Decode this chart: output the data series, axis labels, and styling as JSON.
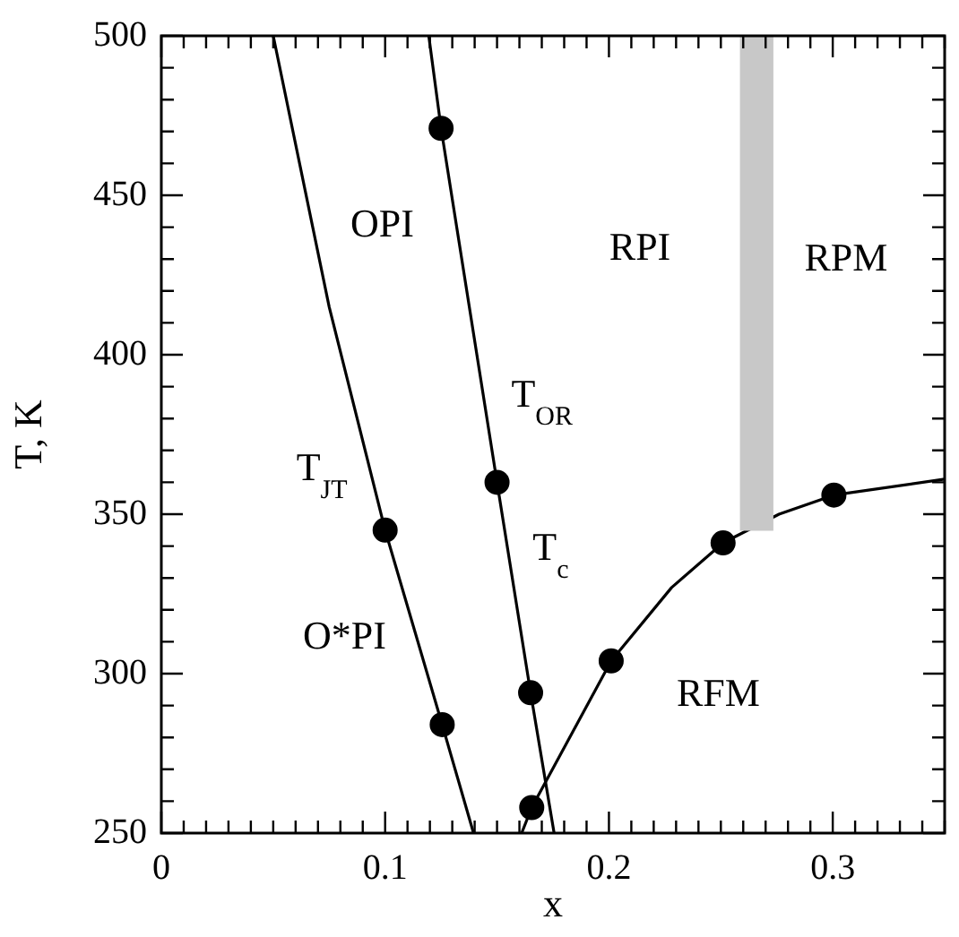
{
  "chart_data": {
    "type": "line",
    "xlabel": "x",
    "ylabel": "T, K",
    "xlim": [
      0,
      0.35
    ],
    "ylim": [
      250,
      500
    ],
    "xticks": [
      0,
      {
        "value": 0.01,
        "label": null
      },
      {
        "value": 0.02,
        "label": null
      },
      {
        "value": 0.03,
        "label": null
      },
      {
        "value": 0.04,
        "label": null
      },
      {
        "value": 0.05,
        "label": null
      },
      {
        "value": 0.06,
        "label": null
      },
      {
        "value": 0.07,
        "label": null
      },
      {
        "value": 0.08,
        "label": null
      },
      {
        "value": 0.09,
        "label": null
      },
      0.1,
      {
        "value": 0.11,
        "label": null
      },
      {
        "value": 0.12,
        "label": null
      },
      {
        "value": 0.13,
        "label": null
      },
      {
        "value": 0.14,
        "label": null
      },
      {
        "value": 0.15,
        "label": null
      },
      {
        "value": 0.16,
        "label": null
      },
      {
        "value": 0.17,
        "label": null
      },
      {
        "value": 0.18,
        "label": null
      },
      {
        "value": 0.19,
        "label": null
      },
      0.2,
      {
        "value": 0.21,
        "label": null
      },
      {
        "value": 0.22,
        "label": null
      },
      {
        "value": 0.23,
        "label": null
      },
      {
        "value": 0.24,
        "label": null
      },
      {
        "value": 0.25,
        "label": null
      },
      {
        "value": 0.26,
        "label": null
      },
      {
        "value": 0.27,
        "label": null
      },
      {
        "value": 0.28,
        "label": null
      },
      {
        "value": 0.29,
        "label": null
      },
      0.3,
      {
        "value": 0.31,
        "label": null
      },
      {
        "value": 0.32,
        "label": null
      },
      {
        "value": 0.33,
        "label": null
      },
      {
        "value": 0.34,
        "label": null
      },
      {
        "value": 0.35,
        "label": null
      }
    ],
    "yticks": [
      250,
      {
        "value": 260,
        "label": null
      },
      {
        "value": 270,
        "label": null
      },
      {
        "value": 280,
        "label": null
      },
      {
        "value": 290,
        "label": null
      },
      300,
      {
        "value": 310,
        "label": null
      },
      {
        "value": 320,
        "label": null
      },
      {
        "value": 330,
        "label": null
      },
      {
        "value": 340,
        "label": null
      },
      350,
      {
        "value": 360,
        "label": null
      },
      {
        "value": 370,
        "label": null
      },
      {
        "value": 380,
        "label": null
      },
      {
        "value": 390,
        "label": null
      },
      400,
      {
        "value": 410,
        "label": null
      },
      {
        "value": 420,
        "label": null
      },
      {
        "value": 430,
        "label": null
      },
      {
        "value": 440,
        "label": null
      },
      450,
      {
        "value": 460,
        "label": null
      },
      {
        "value": 470,
        "label": null
      },
      {
        "value": 480,
        "label": null
      },
      {
        "value": 490,
        "label": null
      },
      500
    ],
    "grid": false,
    "legend": false,
    "series": [
      {
        "type": "bar",
        "color": "#c8c8c8",
        "x": [
          0.266
        ],
        "values": [
          155
        ],
        "base": [
          345
        ]
      },
      {
        "color": "#000000",
        "marker": "none",
        "x": [
          0.05,
          0.075,
          0.1,
          0.1255,
          0.1395
        ],
        "values": [
          500,
          415,
          345,
          284,
          250
        ]
      },
      {
        "color": "#000000",
        "marker": "none",
        "x": [
          0.1195,
          0.125,
          0.15,
          0.165,
          0.1755
        ],
        "values": [
          500,
          471,
          360,
          294,
          250
        ]
      },
      {
        "color": "#000000",
        "marker": "none",
        "x": [
          0.161,
          0.1655,
          0.201,
          0.228,
          0.251,
          0.276,
          0.3005,
          0.35
        ],
        "values": [
          250,
          258,
          304,
          327,
          341,
          350,
          356,
          361
        ]
      },
      {
        "type": "scatter",
        "color": "#000000",
        "marker": "circle",
        "x": [
          0.125,
          0.15,
          0.165,
          0.1,
          0.1255,
          0.1655,
          0.201,
          0.251,
          0.3005
        ],
        "values": [
          471,
          360,
          294,
          345,
          284,
          258,
          304,
          341,
          356
        ]
      }
    ],
    "annotations": [
      "OPI",
      "T$_{JT}$",
      "O*PI",
      "T$_{OR}$",
      "T$_{c}$",
      "RPI",
      "RPM",
      "RFM"
    ]
  }
}
